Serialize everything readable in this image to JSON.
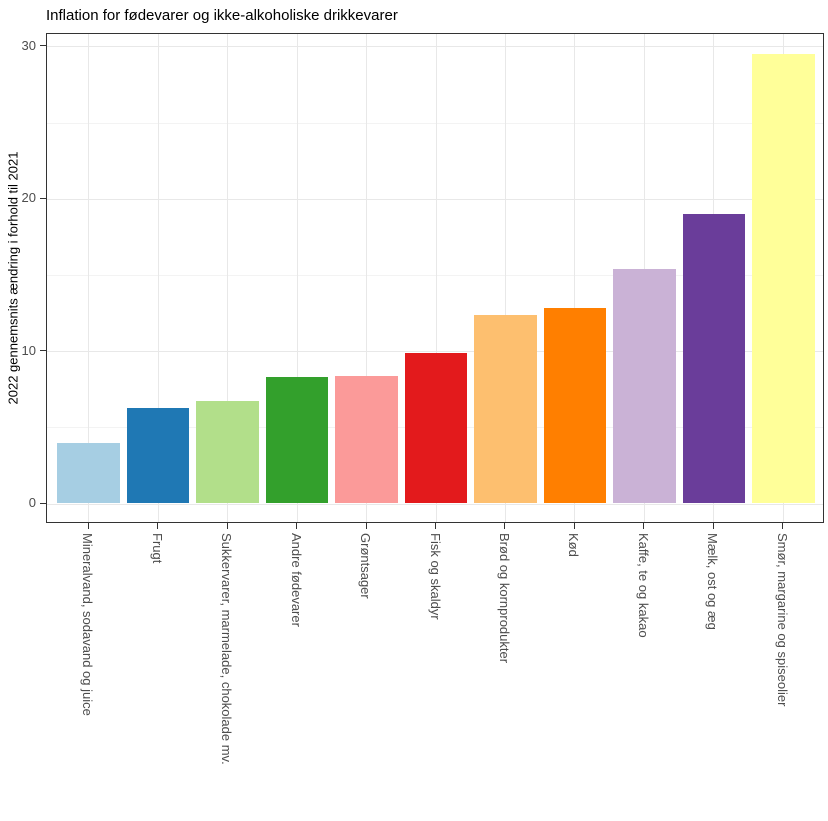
{
  "chart_data": {
    "type": "bar",
    "title": "Inflation for fødevarer og ikke-alkoholiske drikkevarer",
    "ylabel": "2022 gennemsnits ændring i forhold til 2021",
    "xlabel": "",
    "categories": [
      "Mineralvand, sodavand og juice",
      "Frugt",
      "Sukkervarer, marmelade, chokolade mv.",
      "Andre fødevarer",
      "Grøntsager",
      "Fisk og skaldyr",
      "Brød og kornprodukter",
      "Kød",
      "Kaffe, te og kakao",
      "Mælk, ost og æg",
      "Smør, margarine og spiseolier"
    ],
    "values": [
      4.0,
      6.3,
      6.7,
      8.3,
      8.4,
      9.9,
      12.4,
      12.8,
      15.4,
      19.0,
      29.5
    ],
    "bar_colors": [
      "#A6CEE3",
      "#1F78B4",
      "#B2DF8A",
      "#33A02C",
      "#FB9A99",
      "#E31A1C",
      "#FDBF6F",
      "#FF7F00",
      "#CAB2D6",
      "#6A3D9A",
      "#FFFF99"
    ],
    "y_ticks": [
      0,
      10,
      20,
      30
    ],
    "y_tick_labels": [
      "0",
      "10",
      "20",
      "30"
    ],
    "y_minor_ticks": [
      5,
      15,
      25
    ],
    "ylim": [
      0,
      31
    ],
    "grid": "horizontal major+minor, vertical major at category centers",
    "legend": "none",
    "orientation": "vertical",
    "sort": "ascending"
  },
  "style": {
    "palette": "ColorBrewer Paired",
    "background": "#FFFFFF",
    "panel_border": "#333333",
    "grid_major": "#E8E8E8",
    "grid_minor": "#F3F3F3",
    "axis_tick_color": "#333333",
    "tick_label_color": "#4D4D4D",
    "title_color": "#000000"
  }
}
